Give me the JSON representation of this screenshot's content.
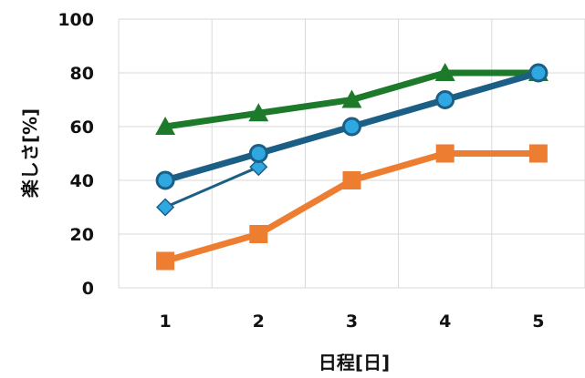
{
  "chart_data": {
    "type": "line",
    "xlabel": "日程[日]",
    "ylabel": "楽しさ[%]",
    "xlim": [
      0.5,
      5.5
    ],
    "ylim": [
      0,
      100
    ],
    "x_ticks": [
      "1",
      "2",
      "3",
      "4",
      "5"
    ],
    "y_ticks": [
      "0",
      "20",
      "40",
      "60",
      "80",
      "100"
    ],
    "grid": true,
    "legend": "none",
    "series": [
      {
        "x": [
          1,
          2,
          3,
          4,
          5
        ],
        "values": [
          10,
          20,
          40,
          50,
          50
        ],
        "color": "#ED7D31",
        "marker": "square"
      },
      {
        "x": [
          1,
          2,
          3,
          4,
          5
        ],
        "values": [
          60,
          65,
          70,
          80,
          80
        ],
        "color": "#1E7A2B",
        "marker": "triangle"
      },
      {
        "x": [
          1,
          2
        ],
        "values": [
          30,
          45
        ],
        "color": "#1B5E86",
        "marker": "diamond"
      },
      {
        "x": [
          1,
          2,
          3,
          4,
          5
        ],
        "values": [
          40,
          50,
          60,
          70,
          80
        ],
        "color": "#1B5E86",
        "marker": "circle"
      }
    ]
  }
}
